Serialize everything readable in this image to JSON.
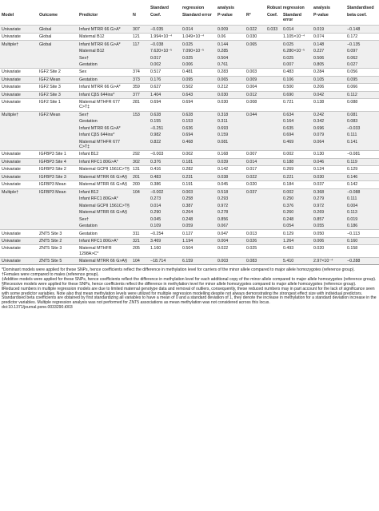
{
  "headers": {
    "row1": {
      "standard": "Standard",
      "regression": "regression",
      "analysis": "analysis",
      "robust_regression": "Robust regression",
      "robust_analysis": "analysis",
      "standardised": "Standardised"
    },
    "row2": {
      "model": "Model",
      "outcome": "Outcome",
      "predictor": "Predictor",
      "n": "N",
      "coef": "Coef.",
      "standard_error": "Standard error",
      "p_value": "P-value",
      "r2": "R²",
      "coef_robust": "Coef.",
      "standard_error_robust": "Standard error",
      "p_value_robust": "P-value",
      "beta_coef": "beta coef."
    }
  },
  "rows": [
    {
      "model": "Univariate",
      "outcome": "Global",
      "predictor": "Infant MTRR 66 G>A*",
      "n": "307",
      "coef": "−0.035",
      "se": "0.014",
      "p": "0.009",
      "r2": "0.022",
      "coef_r": "0.033",
      "se_r": "0.014",
      "p_r": "0.019",
      "beta": "−0.148"
    },
    {
      "model": "Univariate",
      "outcome": "Global",
      "predictor": "Maternal B12",
      "n": "121",
      "coef": "1.994×10⁻⁴",
      "se": "1.049×10⁻⁴",
      "p": "0.06",
      "r2": "0.030",
      "coef_r": "",
      "se_r": "1.105×10⁻⁴",
      "p_r": "0.074",
      "beta": "0.172"
    },
    {
      "model": "Multiple†",
      "outcome": "Global",
      "predictor": "Infant MTRR 66 G>A*",
      "n": "117",
      "coef": "−0.038",
      "se": "0.025",
      "p": "0.144",
      "r2": "0.065",
      "coef_r": "",
      "se_r": "0.025",
      "p_r": "0.148",
      "beta": "−0.135"
    },
    {
      "model": "",
      "outcome": "",
      "predictor": "Maternal B12",
      "n": "",
      "coef": "7.620×10⁻⁵",
      "se": "7.090×10⁻⁵",
      "p": "0.285",
      "r2": "",
      "coef_r": "",
      "se_r": "6.280×10⁻⁵",
      "p_r": "0.227",
      "beta": "0.097"
    },
    {
      "model": "",
      "outcome": "",
      "predictor": "Sex†",
      "n": "",
      "coef": "0.017",
      "se": "0.025",
      "p": "0.504",
      "r2": "",
      "coef_r": "",
      "se_r": "0.025",
      "p_r": "0.506",
      "beta": "0.062"
    },
    {
      "model": "",
      "outcome": "",
      "predictor": "Gestation",
      "n": "",
      "coef": "0.002",
      "se": "0.006",
      "p": "0.761",
      "r2": "",
      "coef_r": "",
      "se_r": "0.007",
      "p_r": "0.805",
      "beta": "0.027"
    },
    {
      "model": "Univariate",
      "outcome": "IGF2 Site 2",
      "predictor": "Sex",
      "n": "374",
      "coef": "0.517",
      "se": "0.481",
      "p": "0.283",
      "r2": "0.003",
      "coef_r": "",
      "se_r": "0.483",
      "p_r": "0.284",
      "beta": "0.056"
    },
    {
      "model": "Univariate",
      "outcome": "IGF2 Mean",
      "predictor": "Gestation",
      "n": "373",
      "coef": "0.176",
      "se": "0.095",
      "p": "0.065",
      "r2": "0.009",
      "coef_r": "",
      "se_r": "0.106",
      "p_r": "0.105",
      "beta": "0.095"
    },
    {
      "model": "Univariate",
      "outcome": "IGF2 Site 3",
      "predictor": "Infant MTRR 66 G>A*",
      "n": "359",
      "coef": "0.627",
      "se": "0.502",
      "p": "0.212",
      "r2": "0.004",
      "coef_r": "",
      "se_r": "0.500",
      "p_r": "0.206",
      "beta": "0.066"
    },
    {
      "model": "Univariate",
      "outcome": "IGF2 Site 3",
      "predictor": "Infant CβS 644ins*",
      "n": "377",
      "coef": "1.404",
      "se": "0.643",
      "p": "0.030",
      "r2": "0.012",
      "coef_r": "",
      "se_r": "0.690",
      "p_r": "0.042",
      "beta": "0.112"
    },
    {
      "model": "Univariate",
      "outcome": "IGF2 Site 1",
      "predictor": "Maternal MTHFR 677 C>T‡",
      "n": "281",
      "coef": "0.694",
      "se": "0.694",
      "p": "0.030",
      "r2": "0.008",
      "coef_r": "",
      "se_r": "0.721",
      "p_r": "0.138",
      "beta": "0.088"
    },
    {
      "model": "Multiple†",
      "outcome": "IGF2 Mean",
      "predictor": "Sex†",
      "n": "153",
      "coef": "0.628",
      "se": "0.628",
      "p": "0.318",
      "r2": "0.044",
      "coef_r": "",
      "se_r": "0.634",
      "p_r": "0.242",
      "beta": "0.081"
    },
    {
      "model": "",
      "outcome": "",
      "predictor": "Gestation",
      "n": "",
      "coef": "0.155",
      "se": "0.153",
      "p": "0.311",
      "r2": "",
      "coef_r": "",
      "se_r": "0.164",
      "p_r": "0.342",
      "beta": "0.083"
    },
    {
      "model": "",
      "outcome": "",
      "predictor": "Infant MTRR 66 G>A*",
      "n": "",
      "coef": "−0.251",
      "se": "0.636",
      "p": "0.693",
      "r2": "",
      "coef_r": "",
      "se_r": "0.635",
      "p_r": "0.696",
      "beta": "−0.033"
    },
    {
      "model": "",
      "outcome": "",
      "predictor": "Infant CβS 644ins*",
      "n": "",
      "coef": "0.982",
      "se": "0.694",
      "p": "0.159",
      "r2": "",
      "coef_r": "",
      "se_r": "0.694",
      "p_r": "0.079",
      "beta": "0.111"
    },
    {
      "model": "",
      "outcome": "",
      "predictor": "Maternal MTHFR 677 C>T‡",
      "n": "",
      "coef": "0.822",
      "se": "0.468",
      "p": "0.081",
      "r2": "",
      "coef_r": "",
      "se_r": "0.469",
      "p_r": "0.064",
      "beta": "0.141"
    },
    {
      "model": "Univariate",
      "outcome": "IGFBP3 Site 1",
      "predictor": "Infant B12",
      "n": "292",
      "coef": "−0.003",
      "se": "0.002",
      "p": "0.168",
      "r2": "0.007",
      "coef_r": "",
      "se_r": "0.002",
      "p_r": "0.130",
      "beta": "−0.081"
    },
    {
      "model": "Univariate",
      "outcome": "IGFBP3 Site 4",
      "predictor": "Infant RFC1 80G>A*",
      "n": "302",
      "coef": "0.376",
      "se": "0.181",
      "p": "0.039",
      "r2": "0.014",
      "coef_r": "",
      "se_r": "0.188",
      "p_r": "0.046",
      "beta": "0.119"
    },
    {
      "model": "Univariate",
      "outcome": "IGFBP3 Site 2",
      "predictor": "Maternal GCPII 1561C>T§",
      "n": "131",
      "coef": "0.416",
      "se": "0.282",
      "p": "0.142",
      "r2": "0.017",
      "coef_r": "",
      "se_r": "0.269",
      "p_r": "0.124",
      "beta": "0.129"
    },
    {
      "model": "Univariate",
      "outcome": "IGFBP3 Site 3",
      "predictor": "Maternal MTRR 66 G>A§",
      "n": "201",
      "coef": "0.483",
      "se": "0.231",
      "p": "0.038",
      "r2": "0.022",
      "coef_r": "",
      "se_r": "0.221",
      "p_r": "0.030",
      "beta": "0.146"
    },
    {
      "model": "Univariate",
      "outcome": "IGFBP3 Mean",
      "predictor": "Maternal MTRR 66 G>A§",
      "n": "200",
      "coef": "0.386",
      "se": "0.191",
      "p": "0.045",
      "r2": "0.020",
      "coef_r": "",
      "se_r": "0.184",
      "p_r": "0.037",
      "beta": "0.142"
    },
    {
      "model": "Multiple†",
      "outcome": "IGFBP3 Mean",
      "predictor": "Infant B12",
      "n": "104",
      "coef": "−0.002",
      "se": "0.003",
      "p": "0.518",
      "r2": "0.037",
      "coef_r": "",
      "se_r": "0.002",
      "p_r": "0.368",
      "beta": "−0.088"
    },
    {
      "model": "",
      "outcome": "",
      "predictor": "Infant RFC1 80G>A*",
      "n": "",
      "coef": "0.273",
      "se": "0.258",
      "p": "0.293",
      "r2": "",
      "coef_r": "",
      "se_r": "0.250",
      "p_r": "0.279",
      "beta": "0.111"
    },
    {
      "model": "",
      "outcome": "",
      "predictor": "Maternal GCPII 1561C>T§",
      "n": "",
      "coef": "0.014",
      "se": "0.387",
      "p": "0.972",
      "r2": "",
      "coef_r": "",
      "se_r": "0.376",
      "p_r": "0.972",
      "beta": "0.004"
    },
    {
      "model": "",
      "outcome": "",
      "predictor": "Maternal MTRR 66 G>A§",
      "n": "",
      "coef": "0.290",
      "se": "0.264",
      "p": "0.278",
      "r2": "",
      "coef_r": "",
      "se_r": "0.260",
      "p_r": "0.269",
      "beta": "0.113"
    },
    {
      "model": "",
      "outcome": "",
      "predictor": "Sex†",
      "n": "",
      "coef": "0.045",
      "se": "0.248",
      "p": "0.856",
      "r2": "",
      "coef_r": "",
      "se_r": "0.248",
      "p_r": "0.857",
      "beta": "0.019"
    },
    {
      "model": "",
      "outcome": "",
      "predictor": "Gestation",
      "n": "",
      "coef": "0.109",
      "se": "0.059",
      "p": "0.067",
      "r2": "",
      "coef_r": "",
      "se_r": "0.054",
      "p_r": "0.055",
      "beta": "0.186"
    },
    {
      "model": "Univariate",
      "outcome": "ZNT5 Site 3",
      "predictor": "Gestation",
      "n": "311",
      "coef": "−0.254",
      "se": "0.127",
      "p": "0.047",
      "r2": "0.013",
      "coef_r": "",
      "se_r": "0.129",
      "p_r": "0.050",
      "beta": "−0.113"
    },
    {
      "model": "Univariate",
      "outcome": "ZNT5 Site 2",
      "predictor": "Infant RFC1 80G>A*",
      "n": "321",
      "coef": "3.469",
      "se": "1.194",
      "p": "0.004",
      "r2": "0.026",
      "coef_r": "",
      "se_r": "1.264",
      "p_r": "0.006",
      "beta": "0.160"
    },
    {
      "model": "Univariate",
      "outcome": "ZNT5 Site 3",
      "predictor": "Maternal MTHFR 1298A>C*",
      "n": "205",
      "coef": "1.160",
      "se": "0.504",
      "p": "0.022",
      "r2": "0.025",
      "coef_r": "",
      "se_r": "0.493",
      "p_r": "0.020",
      "beta": "0.158"
    },
    {
      "model": "Univariate",
      "outcome": "ZNT5 Site 5",
      "predictor": "Maternal MTRR 66 G>A§",
      "n": "104",
      "coef": "−18.714",
      "se": "6.159",
      "p": "0.003",
      "r2": "0.083",
      "coef_r": "",
      "se_r": "5.410",
      "p_r": "2.97×10⁻⁴",
      "beta": "−0.288"
    }
  ],
  "footnotes": [
    "*Dominant models were applied for these SNPs, hence coefficients reflect the difference in methylation level for carriers of the minor allele compared to major allele homozygotes (reference group).",
    "†Females were compared to males (reference group).",
    "‡Additive models were applied for these SNPs, hence coefficients reflect the difference in methylation level for each additional copy of the minor allele compared to major allele homozygotes (reference group).",
    "§Recessive models were applied for these SNPs, hence coefficients reflect the difference in methylation level for minor allele homozygotes compared to major allele homozygotes (reference group).",
    "ǁReduced numbers in multiple regression models are due to limited maternal genotype data and removal of outliers, consequently, these reduced numbers may in part account for the lack of significance seen with some predictor variables. Note also that mean methylation levels were utilized for multiple regression modelling despite not always demonstrating the strongest effect size with individual predictors. Standardised beta coefficients are obtained by first standardizing all variables to have a mean of 0 and a standard deviation of 1, they denote the increase in methylation for a standard deviation increase in the predictor variables. Multiple regression analysis was not performed for ZNT5 associations as mean methylation was not considered across this locus.",
    "doi:10.1371/journal.pone.0033290.t003"
  ]
}
